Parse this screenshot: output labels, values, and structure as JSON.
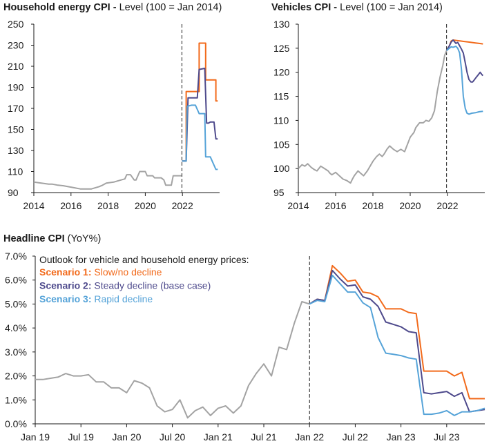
{
  "colors": {
    "history": "#a3a3a3",
    "scenario1": "#f26a1b",
    "scenario2": "#4e4a8c",
    "scenario3": "#55a3d8",
    "axis": "#1a1a1a"
  },
  "chart_data": [
    {
      "id": "household",
      "type": "line",
      "title": "Household energy CPI",
      "subtitle": "Level (100 = Jan 2014)",
      "title_sep": " - ",
      "ylim": [
        90,
        250
      ],
      "yticks": [
        90,
        110,
        130,
        150,
        170,
        190,
        210,
        230,
        250
      ],
      "xlim": [
        2014,
        2024
      ],
      "xticks": [
        2014,
        2016,
        2018,
        2020,
        2022
      ],
      "vline": 2021.97,
      "history": {
        "x": [
          2014.0,
          2014.2,
          2014.4,
          2014.6,
          2014.8,
          2015.0,
          2015.3,
          2015.6,
          2015.9,
          2016.2,
          2016.5,
          2016.8,
          2017.1,
          2017.3,
          2017.5,
          2017.7,
          2017.9,
          2018.1,
          2018.3,
          2018.5,
          2018.7,
          2018.9,
          2019.0,
          2019.2,
          2019.4,
          2019.5,
          2019.7,
          2019.75,
          2020.0,
          2020.1,
          2020.4,
          2020.5,
          2020.7,
          2020.85,
          2021.0,
          2021.1,
          2021.2,
          2021.4,
          2021.5,
          2021.6,
          2021.7,
          2021.9,
          2021.95
        ],
        "y": [
          100,
          99.5,
          99,
          98.5,
          98,
          98,
          97,
          96.5,
          95.5,
          94.5,
          93.5,
          93.5,
          93.5,
          94.5,
          95.5,
          97,
          99,
          99.5,
          100,
          101,
          102,
          103,
          107,
          107,
          102,
          102,
          110,
          110,
          110,
          106,
          106,
          104,
          104,
          104,
          102,
          97,
          97,
          97,
          106,
          106,
          106,
          106,
          106
        ]
      },
      "series": [
        {
          "name": "Scenario 1",
          "color_key": "scenario1",
          "x": [
            2021.97,
            2022.1,
            2022.2,
            2022.2,
            2022.4,
            2022.5,
            2022.9,
            2022.9,
            2023.25,
            2023.25,
            2023.8,
            2023.8,
            2023.9
          ],
          "y": [
            120,
            120,
            120,
            186,
            186,
            186,
            186,
            232,
            232,
            197,
            197,
            177,
            177
          ]
        },
        {
          "name": "Scenario 2",
          "color_key": "scenario2",
          "x": [
            2021.97,
            2022.1,
            2022.2,
            2022.3,
            2022.5,
            2022.7,
            2022.8,
            2022.9,
            2023.2,
            2023.3,
            2023.4,
            2023.5,
            2023.7,
            2023.8,
            2023.9
          ],
          "y": [
            120,
            120,
            120,
            180,
            180,
            180,
            180,
            207,
            208,
            156,
            156,
            157,
            157,
            141,
            141
          ]
        },
        {
          "name": "Scenario 3",
          "color_key": "scenario3",
          "x": [
            2021.97,
            2022.1,
            2022.2,
            2022.25,
            2022.5,
            2022.7,
            2022.9,
            2023.2,
            2023.25,
            2023.5,
            2023.8,
            2023.9
          ],
          "y": [
            120,
            120,
            120,
            172,
            173,
            173,
            165,
            165,
            124,
            124,
            112,
            112
          ]
        }
      ]
    },
    {
      "id": "vehicles",
      "type": "line",
      "title": "Vehicles CPI",
      "subtitle": "Level (100 = Jan 2014)",
      "title_sep": " - ",
      "ylim": [
        95,
        130
      ],
      "yticks": [
        95,
        100,
        105,
        110,
        115,
        120,
        125,
        130
      ],
      "xlim": [
        2014,
        2024
      ],
      "xticks": [
        2014,
        2016,
        2018,
        2020,
        2022
      ],
      "vline": 2021.95,
      "history": {
        "x": [
          2014.0,
          2014.2,
          2014.35,
          2014.5,
          2014.7,
          2014.85,
          2015.0,
          2015.2,
          2015.4,
          2015.6,
          2015.7,
          2015.8,
          2016.0,
          2016.2,
          2016.4,
          2016.6,
          2016.8,
          2016.9,
          2017.0,
          2017.2,
          2017.35,
          2017.5,
          2017.7,
          2017.85,
          2018.0,
          2018.2,
          2018.35,
          2018.5,
          2018.6,
          2018.75,
          2018.9,
          2019.1,
          2019.3,
          2019.5,
          2019.7,
          2019.8,
          2019.9,
          2020.0,
          2020.2,
          2020.3,
          2020.5,
          2020.7,
          2020.85,
          2021.0,
          2021.15,
          2021.3,
          2021.45,
          2021.6,
          2021.75,
          2021.85,
          2021.95
        ],
        "y": [
          100,
          100.8,
          100.5,
          101,
          100.2,
          99.8,
          99.5,
          100.5,
          100,
          99.5,
          99,
          98.7,
          99.2,
          98.5,
          97.8,
          97.5,
          97,
          97.8,
          98.5,
          99.5,
          99,
          98.5,
          99.5,
          100.5,
          101.5,
          102.5,
          103,
          102.5,
          103,
          104,
          104.7,
          104,
          103.5,
          104,
          103.5,
          104.5,
          105.5,
          106.5,
          107.5,
          108.5,
          109.5,
          109.5,
          110,
          109.8,
          110.5,
          112,
          116,
          119,
          121.5,
          123.5,
          124.5
        ]
      },
      "series": [
        {
          "name": "Scenario 1",
          "color_key": "scenario1",
          "x": [
            2021.95,
            2022.1,
            2022.2,
            2022.3,
            2022.5,
            2022.7,
            2022.9,
            2023.1,
            2023.3,
            2023.5,
            2023.7,
            2023.9
          ],
          "y": [
            124.5,
            125.5,
            126.5,
            126.7,
            126.6,
            126.5,
            126.4,
            126.3,
            126.2,
            126.1,
            126.0,
            125.9
          ]
        },
        {
          "name": "Scenario 2",
          "color_key": "scenario2",
          "x": [
            2021.95,
            2022.1,
            2022.2,
            2022.3,
            2022.45,
            2022.55,
            2022.65,
            2022.75,
            2022.85,
            2022.95,
            2023.05,
            2023.15,
            2023.25,
            2023.35,
            2023.45,
            2023.55,
            2023.65,
            2023.75,
            2023.85,
            2023.9
          ],
          "y": [
            124.5,
            125.5,
            126.3,
            126.7,
            126,
            126.2,
            125.5,
            124.8,
            124,
            122,
            120,
            118.5,
            118,
            118,
            118.5,
            119,
            119.5,
            120,
            119.5,
            119.3
          ]
        },
        {
          "name": "Scenario 3",
          "color_key": "scenario3",
          "x": [
            2021.95,
            2022.1,
            2022.2,
            2022.3,
            2022.45,
            2022.55,
            2022.65,
            2022.75,
            2022.85,
            2022.95,
            2023.05,
            2023.15,
            2023.3,
            2023.5,
            2023.7,
            2023.9
          ],
          "y": [
            124.5,
            125,
            125.3,
            125.2,
            125.4,
            125,
            124,
            120.5,
            115,
            112.5,
            111.5,
            111.3,
            111.5,
            111.6,
            111.8,
            111.9
          ]
        }
      ]
    },
    {
      "id": "headline",
      "type": "line",
      "title": "Headline CPI",
      "subtitle": "(YoY%)",
      "title_sep": " ",
      "ylim": [
        0,
        7
      ],
      "yticks": [
        0,
        1,
        2,
        3,
        4,
        5,
        6,
        7
      ],
      "ytick_labels": [
        "0.0%",
        "1.0%",
        "2.0%",
        "3.0%",
        "4.0%",
        "5.0%",
        "6.0%",
        "7.0%"
      ],
      "xlim": [
        0,
        59
      ],
      "xticks": [
        0,
        6,
        12,
        18,
        24,
        30,
        36,
        42,
        48,
        54
      ],
      "xtick_labels": [
        "Jan 19",
        "Jul 19",
        "Jan 20",
        "Jul 20",
        "Jan 21",
        "Jul 21",
        "Jan 22",
        "Jul 22",
        "Jan 23",
        "Jul 23"
      ],
      "vline": 36,
      "annotation": "Outlook for vehicle and household energy prices:",
      "history": {
        "x": [
          0,
          1,
          2,
          3,
          4,
          5,
          6,
          7,
          8,
          9,
          10,
          11,
          12,
          13,
          14,
          15,
          16,
          17,
          18,
          19,
          20,
          21,
          22,
          23,
          24,
          25,
          26,
          27,
          28,
          29,
          30,
          31,
          32,
          33,
          34,
          35,
          36
        ],
        "y": [
          1.85,
          1.85,
          1.9,
          1.95,
          2.1,
          2.0,
          2.0,
          2.05,
          1.75,
          1.75,
          1.5,
          1.5,
          1.3,
          1.8,
          1.7,
          1.5,
          0.75,
          0.5,
          0.6,
          1.0,
          0.25,
          0.55,
          0.7,
          0.35,
          0.65,
          0.75,
          0.45,
          0.75,
          1.6,
          2.1,
          2.5,
          2.0,
          3.2,
          3.1,
          4.2,
          5.1,
          5.0
        ]
      },
      "series": [
        {
          "name": "Scenario 1",
          "label_suffix": "Slow/no decline",
          "color_key": "scenario1",
          "x": [
            36,
            37,
            38,
            39,
            40,
            41,
            42,
            43,
            44,
            45,
            46,
            47,
            48,
            49,
            50,
            51,
            52,
            53,
            54,
            55,
            56,
            57,
            58,
            59
          ],
          "y": [
            5.0,
            5.2,
            5.15,
            6.6,
            6.3,
            5.95,
            6.0,
            5.5,
            5.45,
            5.3,
            4.8,
            4.8,
            4.8,
            4.65,
            4.6,
            2.2,
            2.2,
            2.2,
            2.2,
            2.0,
            2.15,
            1.05,
            1.05,
            1.05
          ]
        },
        {
          "name": "Scenario 2",
          "label_suffix": "Steady decline (base case)",
          "color_key": "scenario2",
          "x": [
            36,
            37,
            38,
            39,
            40,
            41,
            42,
            43,
            44,
            45,
            46,
            47,
            48,
            49,
            50,
            51,
            52,
            53,
            54,
            55,
            56,
            57,
            58,
            59
          ],
          "y": [
            5.0,
            5.2,
            5.15,
            6.4,
            6.05,
            5.75,
            5.8,
            5.3,
            5.2,
            4.9,
            4.25,
            4.15,
            4.05,
            3.85,
            3.8,
            1.3,
            1.25,
            1.3,
            1.35,
            1.15,
            1.3,
            0.5,
            0.55,
            0.6
          ]
        },
        {
          "name": "Scenario 3",
          "label_suffix": "Rapid decline",
          "color_key": "scenario3",
          "x": [
            36,
            37,
            38,
            39,
            40,
            41,
            42,
            43,
            44,
            45,
            46,
            47,
            48,
            49,
            50,
            51,
            52,
            53,
            54,
            55,
            56,
            57,
            58,
            59
          ],
          "y": [
            5.0,
            5.15,
            5.1,
            6.2,
            5.85,
            5.5,
            5.5,
            5.05,
            4.85,
            3.6,
            2.95,
            2.9,
            2.85,
            2.75,
            2.7,
            0.4,
            0.4,
            0.45,
            0.55,
            0.35,
            0.5,
            0.5,
            0.55,
            0.65
          ]
        }
      ]
    }
  ]
}
